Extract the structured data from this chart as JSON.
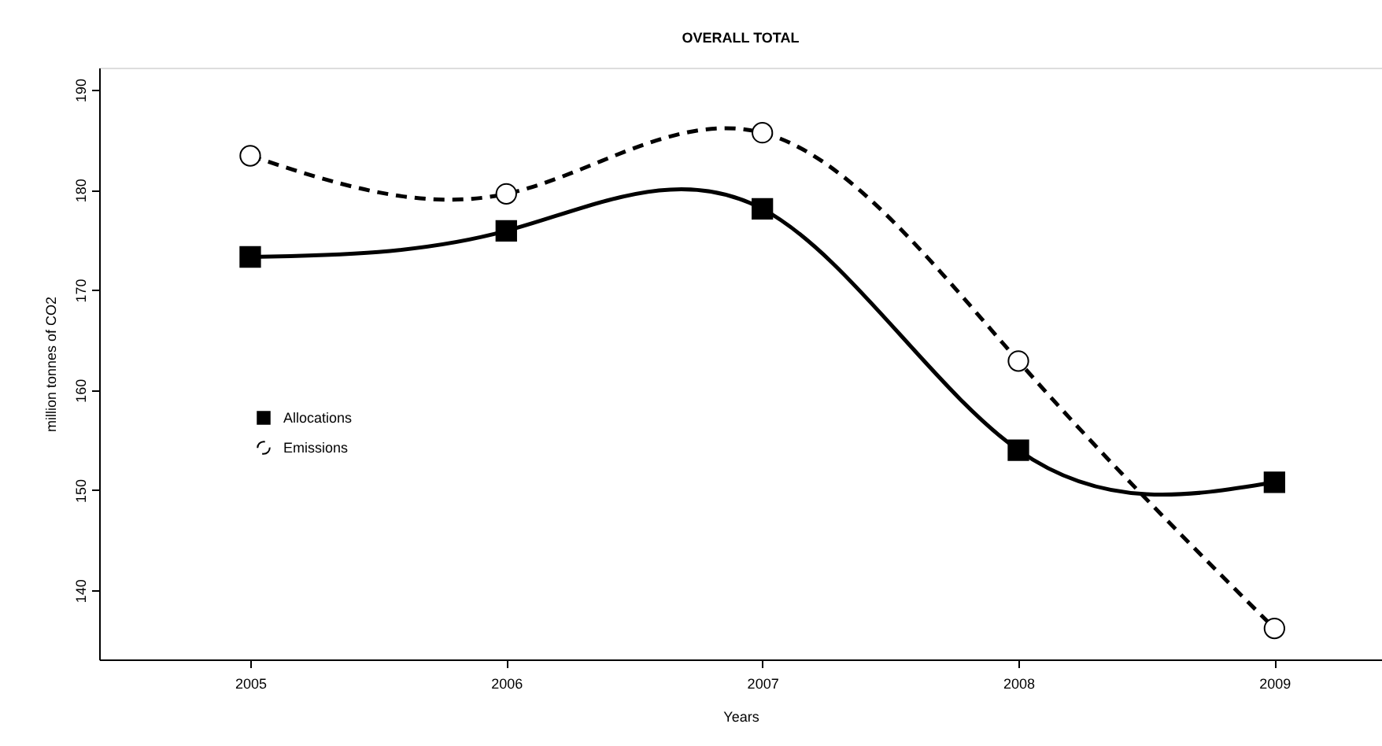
{
  "chart_data": {
    "type": "line",
    "title": "OVERALL TOTAL",
    "xlabel": "Years",
    "ylabel": "million tonnes of CO2",
    "x": [
      2005,
      2006,
      2007,
      2008,
      2009
    ],
    "series": [
      {
        "name": "Allocations",
        "color": "#000000",
        "values": [
          173.3,
          175.9,
          178.1,
          154.0,
          150.8
        ],
        "marker": "square",
        "line_style": "solid"
      },
      {
        "name": "Emissions",
        "color": "#000000",
        "values": [
          183.4,
          179.6,
          185.7,
          162.9,
          136.2
        ],
        "marker": "circle",
        "line_style": "dashed"
      }
    ],
    "xlim": [
      2004.41,
      2009.42
    ],
    "xticks": [
      2005,
      2006,
      2007,
      2008,
      2009
    ],
    "ylim": [
      133.1,
      192.2
    ],
    "yticks": [
      140,
      150,
      160,
      170,
      180,
      190
    ],
    "grid": false,
    "legend": "left"
  }
}
